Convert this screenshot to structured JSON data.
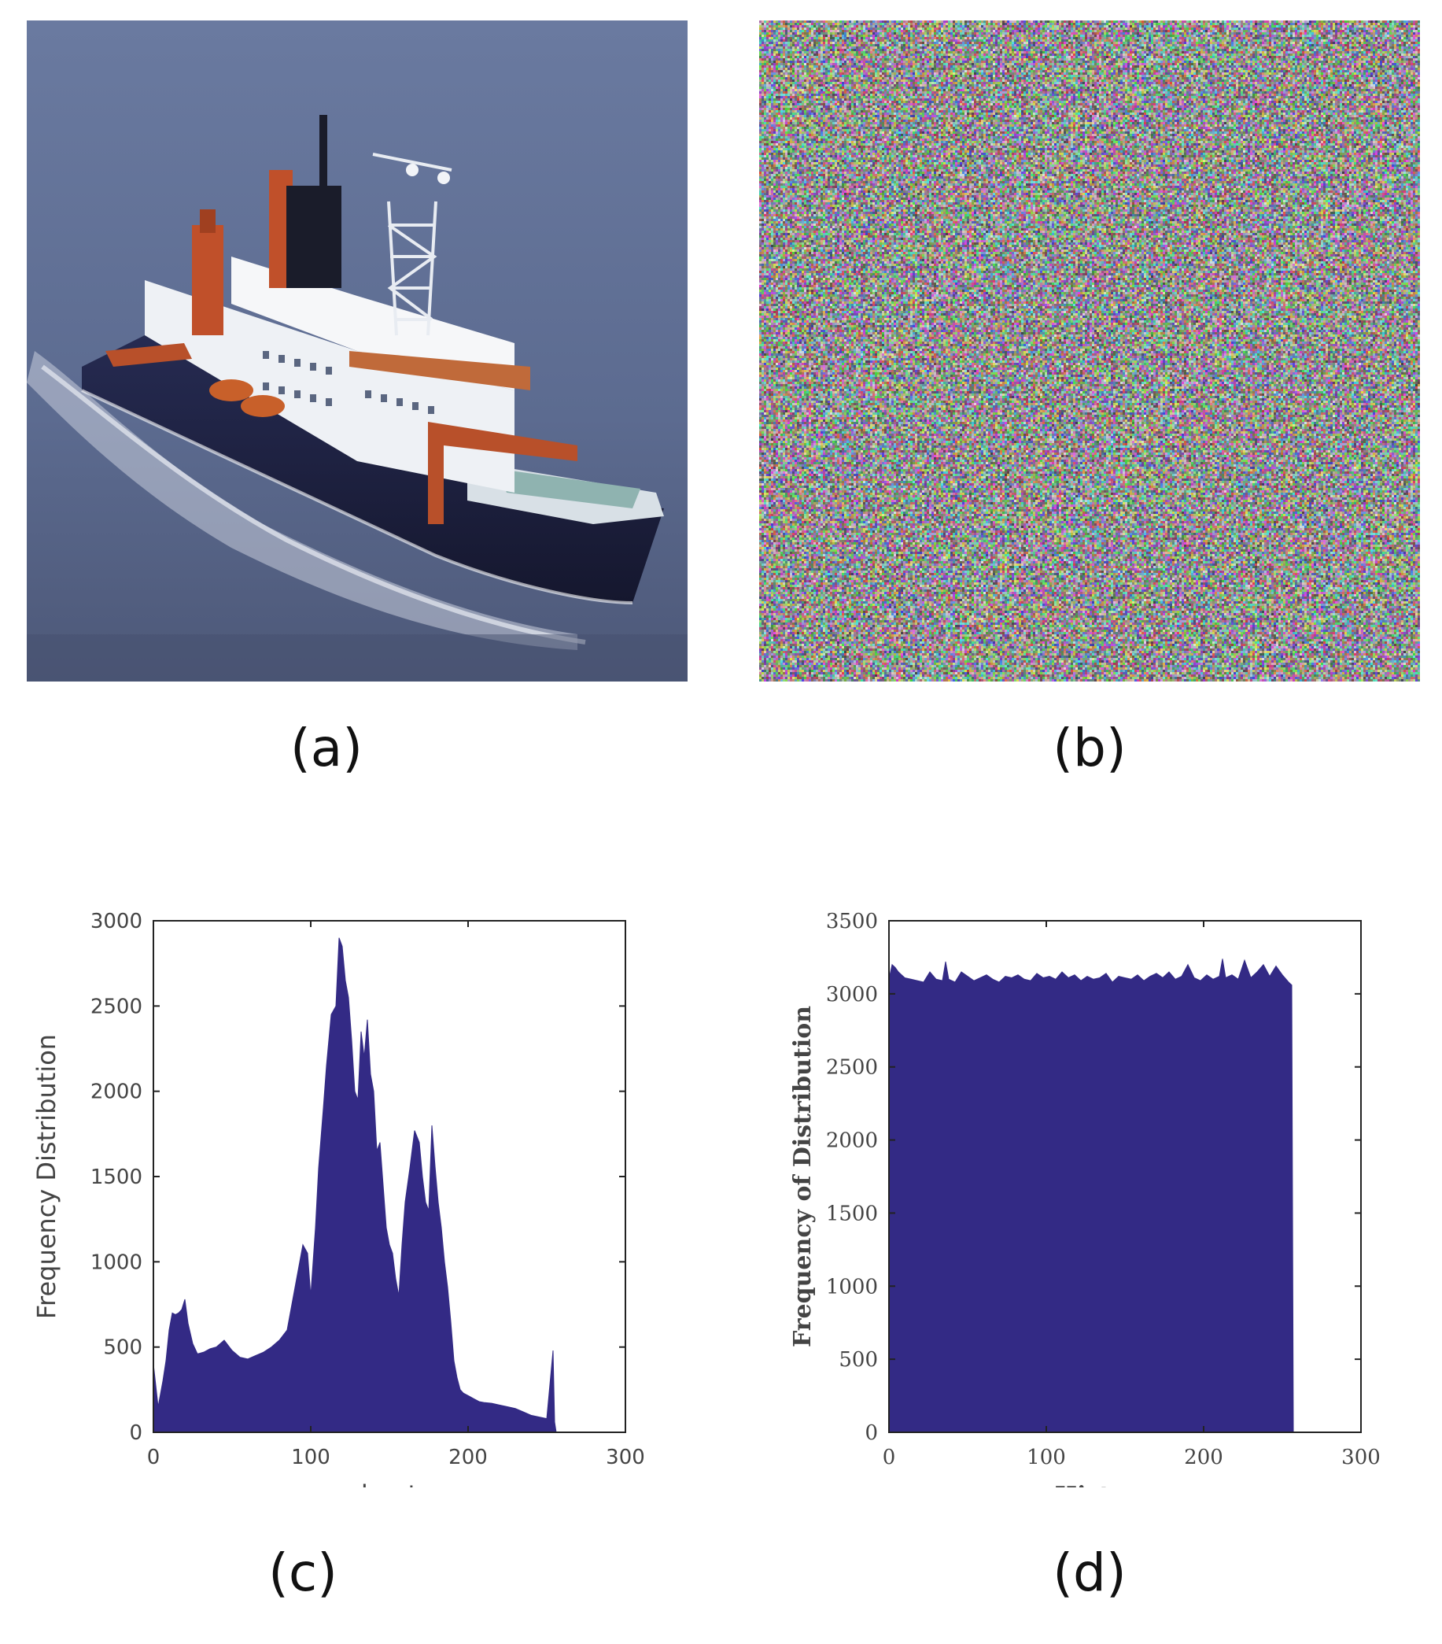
{
  "captions": {
    "a": "(a)",
    "b": "(b)",
    "c": "(c)",
    "d": "(d)"
  },
  "colors": {
    "bar_fill": "#332a85",
    "sea": "#5a6a90",
    "hull": "#1d2140",
    "superstructure": "#f0f2f5",
    "funnel": "#c0502a"
  },
  "icons": {
    "a": "ship-photo",
    "b": "noise-image"
  },
  "chart_data": [
    {
      "panel": "c",
      "type": "area",
      "xlabel": "boat",
      "ylabel": "Frequency Distribution",
      "xlim": [
        0,
        300
      ],
      "ylim": [
        0,
        3000
      ],
      "xticks": [
        "0",
        "100",
        "200",
        "300"
      ],
      "yticks": [
        "0",
        "500",
        "1000",
        "1500",
        "2000",
        "2500",
        "3000"
      ],
      "grid": false,
      "x": [
        0,
        3,
        6,
        8,
        10,
        12,
        14,
        16,
        18,
        20,
        22,
        25,
        28,
        32,
        36,
        40,
        45,
        50,
        55,
        60,
        65,
        70,
        75,
        80,
        85,
        88,
        92,
        95,
        98,
        100,
        103,
        105,
        108,
        110,
        113,
        116,
        118,
        120,
        122,
        124,
        126,
        128,
        130,
        132,
        134,
        136,
        138,
        140,
        142,
        144,
        146,
        148,
        150,
        152,
        154,
        156,
        158,
        160,
        163,
        166,
        169,
        171,
        173,
        175,
        177,
        179,
        181,
        183,
        185,
        187,
        189,
        191,
        193,
        195,
        197,
        199,
        201,
        203,
        205,
        207,
        210,
        215,
        220,
        225,
        230,
        235,
        240,
        245,
        250,
        254,
        255,
        256,
        257
      ],
      "y": [
        400,
        150,
        300,
        420,
        600,
        700,
        690,
        700,
        720,
        780,
        640,
        520,
        460,
        470,
        490,
        500,
        540,
        480,
        440,
        430,
        450,
        470,
        500,
        540,
        600,
        750,
        950,
        1100,
        1050,
        800,
        1200,
        1550,
        1900,
        2150,
        2450,
        2500,
        2900,
        2850,
        2650,
        2550,
        2300,
        2000,
        1950,
        2350,
        2200,
        2420,
        2100,
        2000,
        1650,
        1700,
        1450,
        1200,
        1100,
        1050,
        900,
        800,
        1100,
        1350,
        1550,
        1770,
        1700,
        1500,
        1350,
        1300,
        1800,
        1560,
        1350,
        1200,
        1000,
        850,
        650,
        420,
        320,
        250,
        230,
        220,
        210,
        200,
        190,
        180,
        175,
        170,
        160,
        150,
        140,
        120,
        100,
        90,
        80,
        480,
        60,
        0,
        0
      ]
    },
    {
      "panel": "d",
      "type": "area",
      "xlabel": "Histogram",
      "ylabel": "Frequency of Distribution",
      "xlim": [
        0,
        300
      ],
      "ylim": [
        0,
        3500
      ],
      "xticks": [
        "0",
        "100",
        "200",
        "300"
      ],
      "yticks": [
        "0",
        "500",
        "1000",
        "1500",
        "2000",
        "2500",
        "3000",
        "3500"
      ],
      "grid": false,
      "x": [
        0,
        2,
        4,
        6,
        8,
        10,
        14,
        18,
        22,
        26,
        30,
        34,
        36,
        38,
        42,
        46,
        50,
        54,
        58,
        62,
        66,
        70,
        74,
        78,
        82,
        86,
        90,
        94,
        98,
        102,
        106,
        110,
        114,
        118,
        122,
        126,
        130,
        134,
        138,
        142,
        146,
        150,
        154,
        158,
        162,
        166,
        170,
        174,
        178,
        182,
        186,
        190,
        194,
        198,
        202,
        206,
        210,
        212,
        214,
        218,
        222,
        226,
        230,
        234,
        238,
        242,
        246,
        250,
        254,
        256,
        257
      ],
      "y": [
        3100,
        3200,
        3180,
        3150,
        3130,
        3110,
        3100,
        3090,
        3080,
        3150,
        3100,
        3090,
        3220,
        3100,
        3080,
        3150,
        3120,
        3090,
        3110,
        3130,
        3100,
        3080,
        3120,
        3110,
        3130,
        3100,
        3090,
        3140,
        3110,
        3120,
        3100,
        3150,
        3110,
        3130,
        3090,
        3120,
        3100,
        3110,
        3140,
        3080,
        3120,
        3110,
        3100,
        3130,
        3090,
        3120,
        3140,
        3110,
        3150,
        3100,
        3120,
        3200,
        3110,
        3090,
        3130,
        3100,
        3120,
        3240,
        3110,
        3130,
        3100,
        3230,
        3110,
        3150,
        3200,
        3120,
        3190,
        3130,
        3080,
        3060,
        0
      ]
    }
  ]
}
